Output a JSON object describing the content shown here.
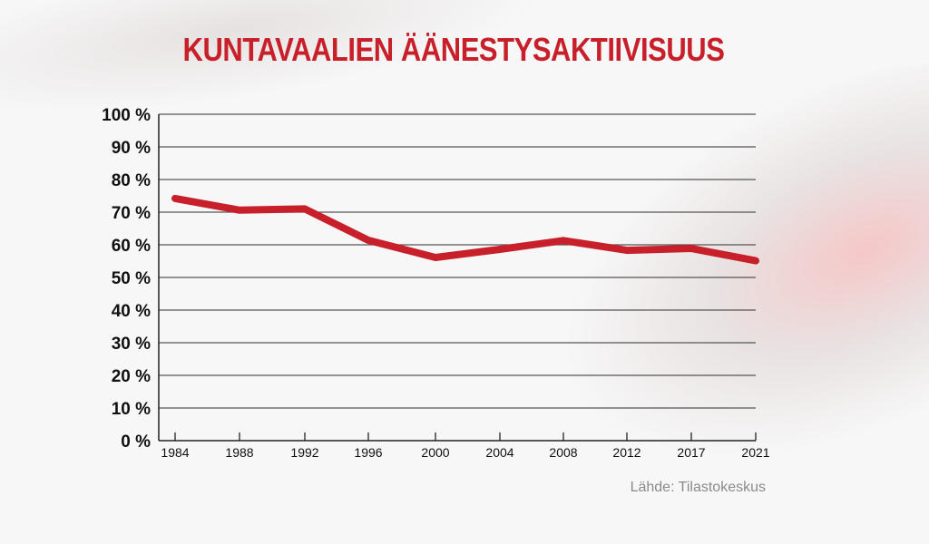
{
  "title": "KUNTAVAALIEN ÄÄNESTYSAKTIIVISUUS",
  "source": "Lähde: Tilastokeskus",
  "colors": {
    "line": "#c8202a",
    "title": "#c8202a",
    "grid": "#555555",
    "source": "#8a8a8a"
  },
  "chart_data": {
    "type": "line",
    "title": "KUNTAVAALIEN ÄÄNESTYSAKTIIVISUUS",
    "xlabel": "",
    "ylabel": "",
    "categories": [
      "1984",
      "1988",
      "1992",
      "1996",
      "2000",
      "2004",
      "2008",
      "2012",
      "2017",
      "2021"
    ],
    "series": [
      {
        "name": "Äänestysaktiivisuus",
        "values": [
          74.2,
          70.6,
          71.0,
          61.4,
          56.1,
          58.6,
          61.3,
          58.3,
          58.9,
          55.1
        ]
      }
    ],
    "ylim": [
      0,
      100
    ],
    "yticks": [
      "0 %",
      "10 %",
      "20 %",
      "30 %",
      "40 %",
      "50 %",
      "60 %",
      "70 %",
      "80 %",
      "90 %",
      "100 %"
    ],
    "grid": true,
    "legend": "none",
    "annotation": "Lähde: Tilastokeskus"
  }
}
